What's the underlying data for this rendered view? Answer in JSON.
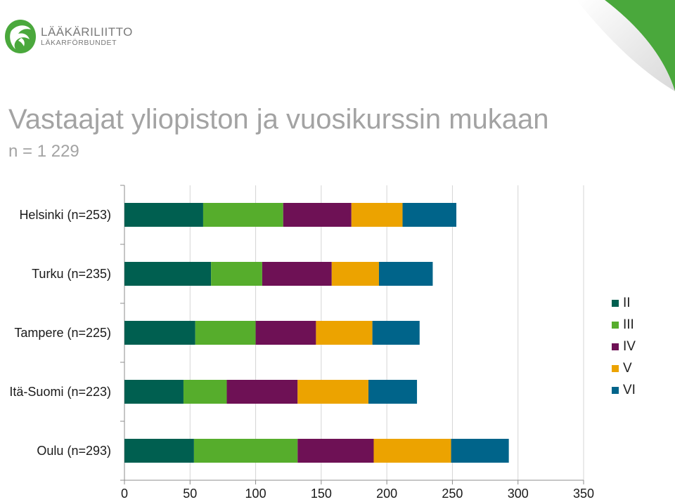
{
  "logo": {
    "name": "LÄÄKÄRILIITTO",
    "sub": "LÄKARFÖRBUNDET"
  },
  "title": "Vastaajat yliopiston ja vuosikurssin mukaan",
  "subtitle": "n = 1 229",
  "colors": {
    "II": "#005f50",
    "III": "#56ad2c",
    "IV": "#6e1155",
    "V": "#eca300",
    "VI": "#00648a",
    "title_gray": "#a3a3a3",
    "brand_green": "#4aa83c"
  },
  "chart_data": {
    "type": "bar",
    "orientation": "horizontal",
    "stacked": true,
    "categories": [
      "Helsinki (n=253)",
      "Turku (n=235)",
      "Tampere (n=225)",
      "Itä-Suomi (n=223)",
      "Oulu (n=293)"
    ],
    "series": [
      {
        "name": "II",
        "values": [
          60,
          66,
          54,
          45,
          53
        ]
      },
      {
        "name": "III",
        "values": [
          61,
          39,
          46,
          33,
          79
        ]
      },
      {
        "name": "IV",
        "values": [
          52,
          53,
          46,
          54,
          58
        ]
      },
      {
        "name": "V",
        "values": [
          39,
          36,
          43,
          54,
          59
        ]
      },
      {
        "name": "VI",
        "values": [
          41,
          41,
          36,
          37,
          44
        ]
      }
    ],
    "xlim": [
      0,
      350
    ],
    "xticks": [
      "0",
      "50",
      "100",
      "150",
      "200",
      "250",
      "300",
      "350"
    ],
    "grid": "vertical",
    "legend": "right"
  }
}
